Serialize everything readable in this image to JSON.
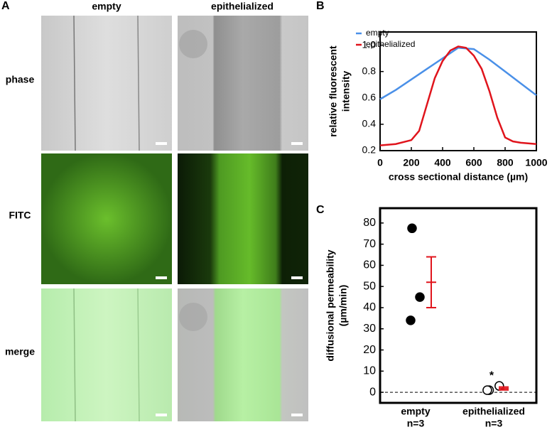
{
  "panel_a": {
    "label": "A",
    "columns": [
      "empty",
      "epithelialized"
    ],
    "rows": [
      "phase",
      "FITC",
      "merge"
    ]
  },
  "chart_data": [
    {
      "type": "line",
      "panel": "B",
      "xlabel": "cross sectional distance (µm)",
      "ylabel": [
        "relative fluorescent",
        "intensity"
      ],
      "xlim": [
        0,
        1000
      ],
      "xticks": [
        0,
        200,
        400,
        600,
        800,
        1000
      ],
      "ylim": [
        0.2,
        1.1
      ],
      "yticks": [
        0.2,
        0.4,
        0.6,
        0.8,
        {
          "value": 1,
          "label": "1.0"
        }
      ],
      "legend": "top-left",
      "series": [
        {
          "name": "empty",
          "color": "#4a90e8",
          "x": [
            0,
            100,
            200,
            300,
            400,
            500,
            600,
            700,
            800,
            900,
            1000
          ],
          "values": [
            0.59,
            0.66,
            0.74,
            0.82,
            0.9,
            0.98,
            0.97,
            0.89,
            0.8,
            0.71,
            0.62
          ]
        },
        {
          "name": "epithelialized",
          "color": "#e0141c",
          "x": [
            0,
            100,
            200,
            250,
            300,
            350,
            400,
            450,
            500,
            550,
            600,
            650,
            700,
            750,
            800,
            850,
            900,
            1000
          ],
          "values": [
            0.24,
            0.25,
            0.28,
            0.35,
            0.55,
            0.75,
            0.88,
            0.96,
            0.99,
            0.98,
            0.92,
            0.82,
            0.65,
            0.45,
            0.3,
            0.27,
            0.26,
            0.25
          ]
        }
      ]
    },
    {
      "type": "dot",
      "panel": "C",
      "ylabel": [
        "diffusional permeability",
        "(µm/min)"
      ],
      "categories": [
        "empty",
        "epithelialized"
      ],
      "n_labels": [
        "n=3",
        "n=3"
      ],
      "ylim": [
        -5,
        87
      ],
      "yticks": [
        0,
        10,
        20,
        30,
        40,
        50,
        60,
        70,
        80
      ],
      "points": [
        [
          77.5,
          45,
          34
        ],
        [
          1,
          3,
          1
        ]
      ],
      "marker_fill": [
        "#000000",
        "#ffffff"
      ],
      "means": [
        52,
        1.8
      ],
      "errors": [
        12,
        0.7
      ],
      "mean_color": "#e0141c",
      "annotations": [
        "",
        "*"
      ],
      "reference_line": 0
    }
  ]
}
